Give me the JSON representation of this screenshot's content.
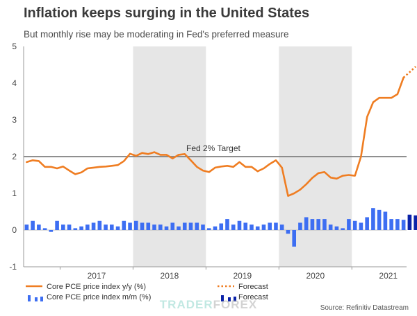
{
  "chart_data": {
    "type": "line",
    "title": "Inflation keeps surging in the United States",
    "subtitle": "But monthly rise may be moderating in Fed's preferred measure",
    "ylim": [
      -1,
      5
    ],
    "y_ticks": [
      "5",
      "4",
      "3",
      "2",
      "1",
      "0",
      "-1"
    ],
    "x_ticks": [
      "2017",
      "2018",
      "2019",
      "2020",
      "2021"
    ],
    "shaded_years": [
      "2018",
      "2020"
    ],
    "grid": false,
    "reference_line": {
      "value": 2,
      "label": "Fed 2% Target",
      "color": "#7f7f7f"
    },
    "series": [
      {
        "name": "Core PCE price index y/y (%)",
        "kind": "line",
        "color": "#ef7d22",
        "start": "2016-07",
        "values": [
          1.85,
          1.9,
          1.88,
          1.72,
          1.72,
          1.68,
          1.73,
          1.62,
          1.52,
          1.57,
          1.68,
          1.7,
          1.72,
          1.73,
          1.75,
          1.77,
          1.88,
          2.08,
          2.02,
          2.1,
          2.07,
          2.12,
          2.05,
          2.05,
          1.95,
          2.05,
          2.07,
          1.9,
          1.72,
          1.62,
          1.58,
          1.7,
          1.73,
          1.75,
          1.72,
          1.85,
          1.72,
          1.72,
          1.6,
          1.68,
          1.8,
          1.9,
          1.7,
          0.93,
          1.0,
          1.1,
          1.25,
          1.42,
          1.55,
          1.58,
          1.43,
          1.4,
          1.48,
          1.5,
          1.48,
          2.0,
          3.08,
          3.48,
          3.6,
          3.6,
          3.6,
          3.7,
          4.15
        ]
      },
      {
        "name": "Forecast",
        "kind": "line-dotted",
        "color": "#ef7d22",
        "start": "2021-09",
        "values": [
          4.15,
          4.3,
          4.45
        ]
      },
      {
        "name": "Core PCE price index m/m (%)",
        "kind": "bar",
        "color": "#3d6ef2",
        "start": "2016-07",
        "values": [
          0.15,
          0.25,
          0.15,
          0.05,
          -0.05,
          0.25,
          0.15,
          0.15,
          0.05,
          0.1,
          0.15,
          0.2,
          0.25,
          0.15,
          0.15,
          0.1,
          0.25,
          0.2,
          0.25,
          0.2,
          0.2,
          0.15,
          0.15,
          0.1,
          0.2,
          0.1,
          0.2,
          0.2,
          0.2,
          0.15,
          0.05,
          0.1,
          0.18,
          0.3,
          0.15,
          0.25,
          0.2,
          0.15,
          0.1,
          0.15,
          0.2,
          0.2,
          0.15,
          -0.1,
          -0.45,
          0.2,
          0.35,
          0.3,
          0.3,
          0.3,
          0.15,
          0.1,
          0.05,
          0.3,
          0.25,
          0.2,
          0.35,
          0.6,
          0.55,
          0.5,
          0.3,
          0.3,
          0.28
        ]
      },
      {
        "name": "Forecast",
        "kind": "bar",
        "color": "#0a22a8",
        "start": "2021-10",
        "values": [
          0.42,
          0.4
        ]
      }
    ],
    "legend": {
      "placement": "bottom",
      "entries": [
        {
          "label": "Core PCE price index y/y (%)",
          "style": "solid-line",
          "color": "#ef7d22"
        },
        {
          "label": "Forecast",
          "style": "dotted-line",
          "color": "#ef7d22"
        },
        {
          "label": "Core PCE price index m/m (%)",
          "style": "bars",
          "color": "#3d6ef2"
        },
        {
          "label": "Forecast",
          "style": "bars",
          "color": "#0a22a8"
        }
      ]
    },
    "source": "Source: Refinitiv Datastream"
  },
  "watermark": {
    "part1": "TRADER",
    "part2": "FOREX"
  },
  "colors": {
    "shade": "#e6e6e6",
    "axis": "#999999",
    "zero_line": "#bfbfbf"
  }
}
